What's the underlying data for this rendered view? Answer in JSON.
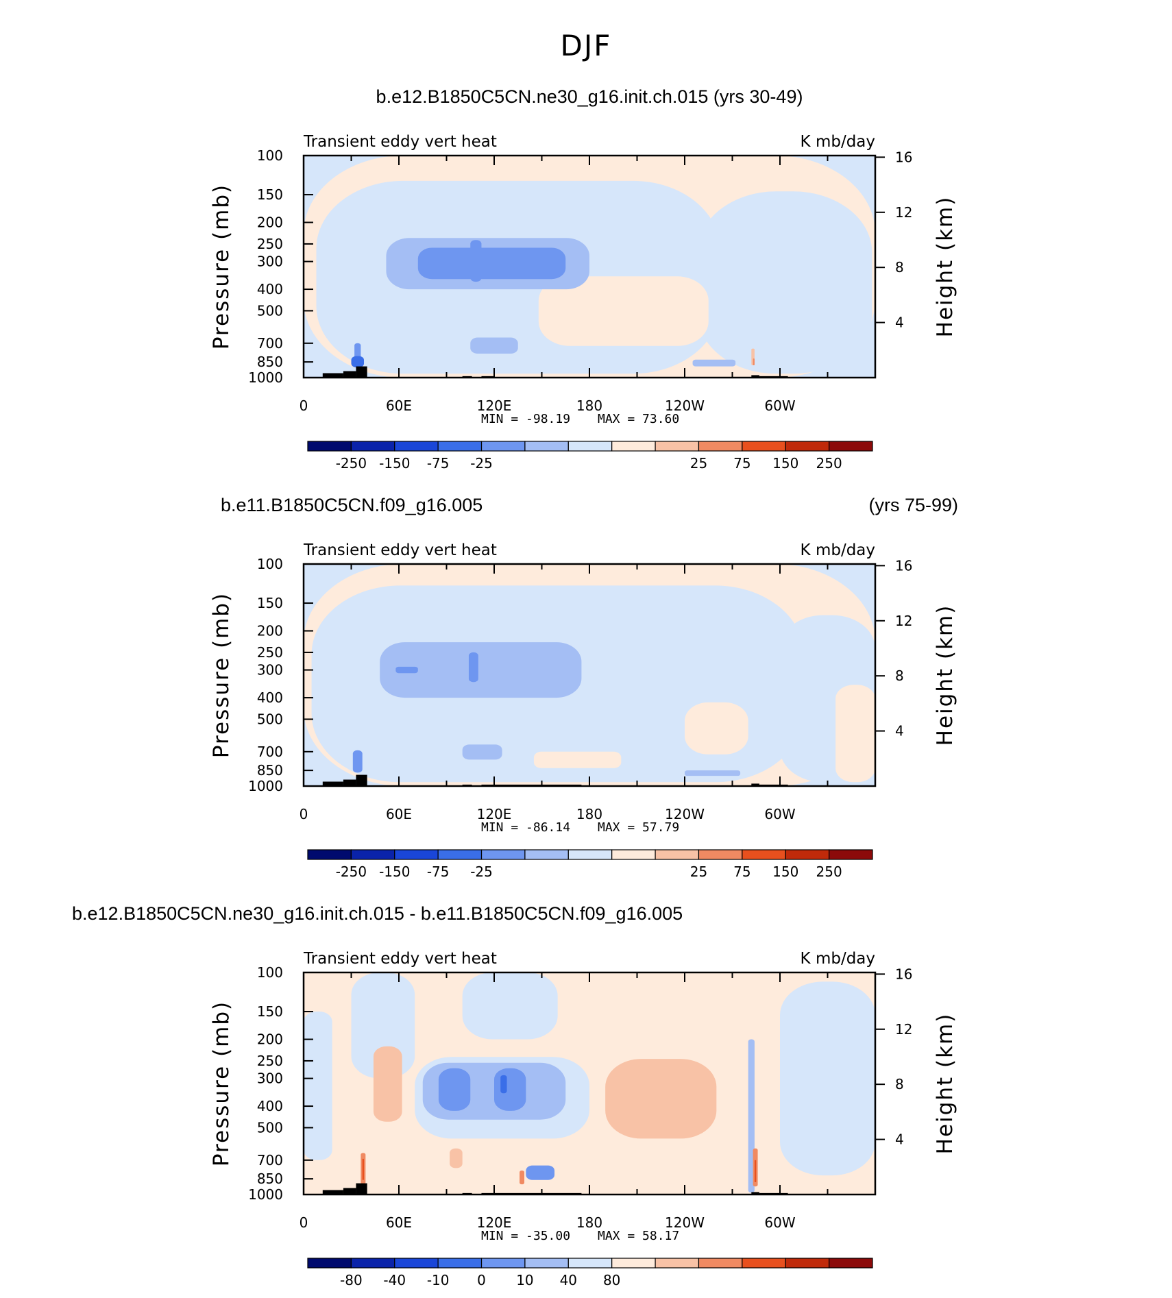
{
  "figure": {
    "title": "DJF"
  },
  "colors": {
    "palette": [
      "#000a6e",
      "#0a23aa",
      "#1a46d8",
      "#3a6ee8",
      "#6e96f0",
      "#a4bef4",
      "#d6e6fa",
      "#feebdc",
      "#f8c2a6",
      "#f08a62",
      "#e8501e",
      "#c02a0a",
      "#8c0a0a"
    ],
    "topography": "#000000"
  },
  "chart_data": [
    {
      "type": "heatmap",
      "title_left": "b.e12.B1850C5CN.ne30_g16.init.ch.015 (yrs 30-49)",
      "title_right": "",
      "title_align": "center",
      "variable": "Transient eddy vert heat",
      "units": "K mb/day",
      "ylabel": "Pressure (mb)",
      "ylabel_right": "Height (km)",
      "x_ticks": [
        "0",
        "60E",
        "120E",
        "180",
        "120W",
        "60W"
      ],
      "y_ticks": [
        "100",
        "150",
        "200",
        "250",
        "300",
        "400",
        "500",
        "700",
        "850",
        "1000"
      ],
      "y_right_ticks": [
        "16",
        "12",
        "8",
        "4"
      ],
      "xlim": [
        0,
        360
      ],
      "ylim": [
        1000,
        100
      ],
      "y_scale": "log",
      "min_text": "MIN = -98.19",
      "max_text": "MAX =  73.60",
      "colorbar_levels": [
        "-250",
        "-150",
        "-75",
        "-25",
        "25",
        "75",
        "150",
        "250"
      ],
      "background_level": 6,
      "regions": [
        {
          "lon": [
            0,
            360
          ],
          "p": [
            100,
            1000
          ],
          "level": 7
        },
        {
          "lon": [
            8,
            262
          ],
          "p": [
            130,
            960
          ],
          "level": 6
        },
        {
          "lon": [
            248,
            358
          ],
          "p": [
            145,
            960
          ],
          "level": 6
        },
        {
          "lon": [
            148,
            255
          ],
          "p": [
            350,
            720
          ],
          "level": 7
        },
        {
          "lon": [
            52,
            180
          ],
          "p": [
            235,
            400
          ],
          "level": 5
        },
        {
          "lon": [
            72,
            165
          ],
          "p": [
            260,
            360
          ],
          "level": 4
        },
        {
          "lon": [
            105,
            112
          ],
          "p": [
            240,
            370
          ],
          "level": 4
        },
        {
          "lon": [
            32,
            36
          ],
          "p": [
            700,
            860
          ],
          "level": 4
        },
        {
          "lon": [
            30,
            38
          ],
          "p": [
            800,
            900
          ],
          "level": 3
        },
        {
          "lon": [
            105,
            135
          ],
          "p": [
            660,
            780
          ],
          "level": 5
        },
        {
          "lon": [
            245,
            272
          ],
          "p": [
            830,
            890
          ],
          "level": 5
        },
        {
          "lon": [
            282,
            284
          ],
          "p": [
            740,
            880
          ],
          "level": 8
        },
        {
          "lon": [
            283,
            284
          ],
          "p": [
            820,
            880
          ],
          "level": 9
        }
      ],
      "topography": [
        {
          "lon": [
            12,
            25
          ],
          "p_top": 955
        },
        {
          "lon": [
            25,
            33
          ],
          "p_top": 935
        },
        {
          "lon": [
            33,
            40
          ],
          "p_top": 890
        },
        {
          "lon": [
            100,
            106
          ],
          "p_top": 985
        },
        {
          "lon": [
            112,
            120
          ],
          "p_top": 985
        },
        {
          "lon": [
            282,
            287
          ],
          "p_top": 975
        },
        {
          "lon": [
            287,
            305
          ],
          "p_top": 985
        }
      ]
    },
    {
      "type": "heatmap",
      "title_left": "b.e11.B1850C5CN.f09_g16.005",
      "title_right": "(yrs 75-99)",
      "title_align": "split",
      "variable": "Transient eddy vert heat",
      "units": "K mb/day",
      "ylabel": "Pressure (mb)",
      "ylabel_right": "Height (km)",
      "x_ticks": [
        "0",
        "60E",
        "120E",
        "180",
        "120W",
        "60W"
      ],
      "y_ticks": [
        "100",
        "150",
        "200",
        "250",
        "300",
        "400",
        "500",
        "700",
        "850",
        "1000"
      ],
      "y_right_ticks": [
        "16",
        "12",
        "8",
        "4"
      ],
      "xlim": [
        0,
        360
      ],
      "ylim": [
        1000,
        100
      ],
      "y_scale": "log",
      "min_text": "MIN = -86.14",
      "max_text": "MAX =  57.79",
      "colorbar_levels": [
        "-250",
        "-150",
        "-75",
        "-25",
        "25",
        "75",
        "150",
        "250"
      ],
      "background_level": 6,
      "regions": [
        {
          "lon": [
            0,
            360
          ],
          "p": [
            100,
            1000
          ],
          "level": 7
        },
        {
          "lon": [
            5,
            315
          ],
          "p": [
            125,
            960
          ],
          "level": 6
        },
        {
          "lon": [
            300,
            360
          ],
          "p": [
            170,
            960
          ],
          "level": 6
        },
        {
          "lon": [
            240,
            280
          ],
          "p": [
            420,
            720
          ],
          "level": 7
        },
        {
          "lon": [
            335,
            360
          ],
          "p": [
            350,
            960
          ],
          "level": 7
        },
        {
          "lon": [
            145,
            200
          ],
          "p": [
            700,
            830
          ],
          "level": 7
        },
        {
          "lon": [
            48,
            175
          ],
          "p": [
            225,
            400
          ],
          "level": 5
        },
        {
          "lon": [
            58,
            72
          ],
          "p": [
            290,
            310
          ],
          "level": 4
        },
        {
          "lon": [
            104,
            110
          ],
          "p": [
            250,
            340
          ],
          "level": 4
        },
        {
          "lon": [
            31,
            37
          ],
          "p": [
            690,
            870
          ],
          "level": 4
        },
        {
          "lon": [
            100,
            125
          ],
          "p": [
            650,
            760
          ],
          "level": 5
        },
        {
          "lon": [
            240,
            275
          ],
          "p": [
            850,
            900
          ],
          "level": 5
        }
      ],
      "topography": [
        {
          "lon": [
            12,
            25
          ],
          "p_top": 955
        },
        {
          "lon": [
            25,
            33
          ],
          "p_top": 935
        },
        {
          "lon": [
            33,
            40
          ],
          "p_top": 890
        },
        {
          "lon": [
            100,
            106
          ],
          "p_top": 985
        },
        {
          "lon": [
            112,
            175
          ],
          "p_top": 985
        },
        {
          "lon": [
            282,
            287
          ],
          "p_top": 975
        },
        {
          "lon": [
            287,
            305
          ],
          "p_top": 985
        }
      ]
    },
    {
      "type": "heatmap",
      "title_left": "b.e12.B1850C5CN.ne30_g16.init.ch.015 - b.e11.B1850C5CN.f09_g16.005",
      "title_right": "",
      "title_align": "left",
      "variable": "Transient eddy vert heat",
      "units": "K mb/day",
      "ylabel": "Pressure (mb)",
      "ylabel_right": "Height (km)",
      "x_ticks": [
        "0",
        "60E",
        "120E",
        "180",
        "120W",
        "60W"
      ],
      "y_ticks": [
        "100",
        "150",
        "200",
        "250",
        "300",
        "400",
        "500",
        "700",
        "850",
        "1000"
      ],
      "y_right_ticks": [
        "16",
        "12",
        "8",
        "4"
      ],
      "xlim": [
        0,
        360
      ],
      "ylim": [
        1000,
        100
      ],
      "y_scale": "log",
      "min_text": "MIN = -35.00",
      "max_text": "MAX =  58.17",
      "colorbar_levels": [
        "-80",
        "-40",
        "-10",
        "0",
        "10",
        "40",
        "80"
      ],
      "colorbar_label_edges": [
        1,
        2,
        3,
        4,
        5,
        6,
        7
      ],
      "background_level": 7,
      "regions": [
        {
          "lon": [
            0,
            360
          ],
          "p": [
            100,
            1000
          ],
          "level": 7
        },
        {
          "lon": [
            30,
            70
          ],
          "p": [
            100,
            300
          ],
          "level": 6
        },
        {
          "lon": [
            100,
            160
          ],
          "p": [
            100,
            200
          ],
          "level": 6
        },
        {
          "lon": [
            300,
            360
          ],
          "p": [
            110,
            820
          ],
          "level": 6
        },
        {
          "lon": [
            0,
            18
          ],
          "p": [
            150,
            700
          ],
          "level": 6
        },
        {
          "lon": [
            70,
            180
          ],
          "p": [
            240,
            560
          ],
          "level": 6
        },
        {
          "lon": [
            75,
            165
          ],
          "p": [
            255,
            460
          ],
          "level": 5
        },
        {
          "lon": [
            85,
            105
          ],
          "p": [
            270,
            420
          ],
          "level": 4
        },
        {
          "lon": [
            120,
            140
          ],
          "p": [
            270,
            420
          ],
          "level": 4
        },
        {
          "lon": [
            124,
            128
          ],
          "p": [
            290,
            350
          ],
          "level": 3
        },
        {
          "lon": [
            44,
            62
          ],
          "p": [
            215,
            470
          ],
          "level": 8
        },
        {
          "lon": [
            190,
            260
          ],
          "p": [
            245,
            560
          ],
          "level": 8
        },
        {
          "lon": [
            92,
            100
          ],
          "p": [
            620,
            760
          ],
          "level": 8
        },
        {
          "lon": [
            140,
            158
          ],
          "p": [
            740,
            860
          ],
          "level": 4
        },
        {
          "lon": [
            280,
            284
          ],
          "p": [
            200,
            980
          ],
          "level": 5
        },
        {
          "lon": [
            283,
            286
          ],
          "p": [
            620,
            920
          ],
          "level": 9
        },
        {
          "lon": [
            284,
            285
          ],
          "p": [
            700,
            880
          ],
          "level": 10
        },
        {
          "lon": [
            36,
            39
          ],
          "p": [
            650,
            900
          ],
          "level": 9
        },
        {
          "lon": [
            37,
            38
          ],
          "p": [
            690,
            860
          ],
          "level": 10
        },
        {
          "lon": [
            136,
            139
          ],
          "p": [
            780,
            900
          ],
          "level": 9
        }
      ],
      "topography": [
        {
          "lon": [
            12,
            25
          ],
          "p_top": 955
        },
        {
          "lon": [
            25,
            33
          ],
          "p_top": 935
        },
        {
          "lon": [
            33,
            40
          ],
          "p_top": 890
        },
        {
          "lon": [
            100,
            106
          ],
          "p_top": 985
        },
        {
          "lon": [
            112,
            175
          ],
          "p_top": 985
        },
        {
          "lon": [
            282,
            287
          ],
          "p_top": 975
        },
        {
          "lon": [
            287,
            305
          ],
          "p_top": 985
        }
      ]
    }
  ]
}
